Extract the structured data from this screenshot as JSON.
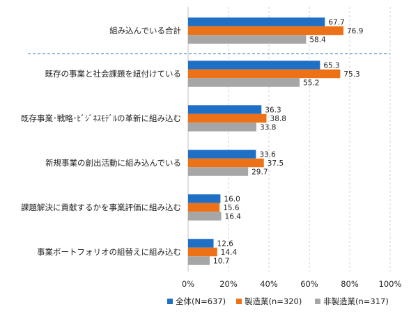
{
  "chart_data": {
    "type": "bar",
    "orientation": "horizontal",
    "categories": [
      "組み込んでいる合計",
      "既存の事業と社会課題を紐付けている",
      "既存事業･戦略･ﾋﾞｼﾞﾈｽﾓﾃﾞﾙの革新に組み込む",
      "新規事業の創出活動に組み込んでいる",
      "課題解決に貢献するかを事業評価に組み込む",
      "事業ポートフォリオの組替えに組み込む"
    ],
    "series": [
      {
        "name": "全体(N=637)",
        "color": "#1f6fc5",
        "values": [
          67.7,
          65.3,
          36.3,
          33.6,
          16.0,
          12.6
        ]
      },
      {
        "name": "製造業(n=320)",
        "color": "#ed7117",
        "values": [
          76.9,
          75.3,
          38.8,
          37.5,
          15.6,
          14.4
        ]
      },
      {
        "name": "非製造業(n=317)",
        "color": "#a6a6a6",
        "values": [
          58.4,
          55.2,
          33.8,
          29.7,
          16.4,
          10.7
        ]
      }
    ],
    "xlim": [
      0,
      100
    ],
    "x_ticks": [
      "0%",
      "20%",
      "40%",
      "60%",
      "80%",
      "100%"
    ],
    "grid": "vertical-dashed",
    "separator_after_category": 0,
    "legend_position": "bottom"
  }
}
